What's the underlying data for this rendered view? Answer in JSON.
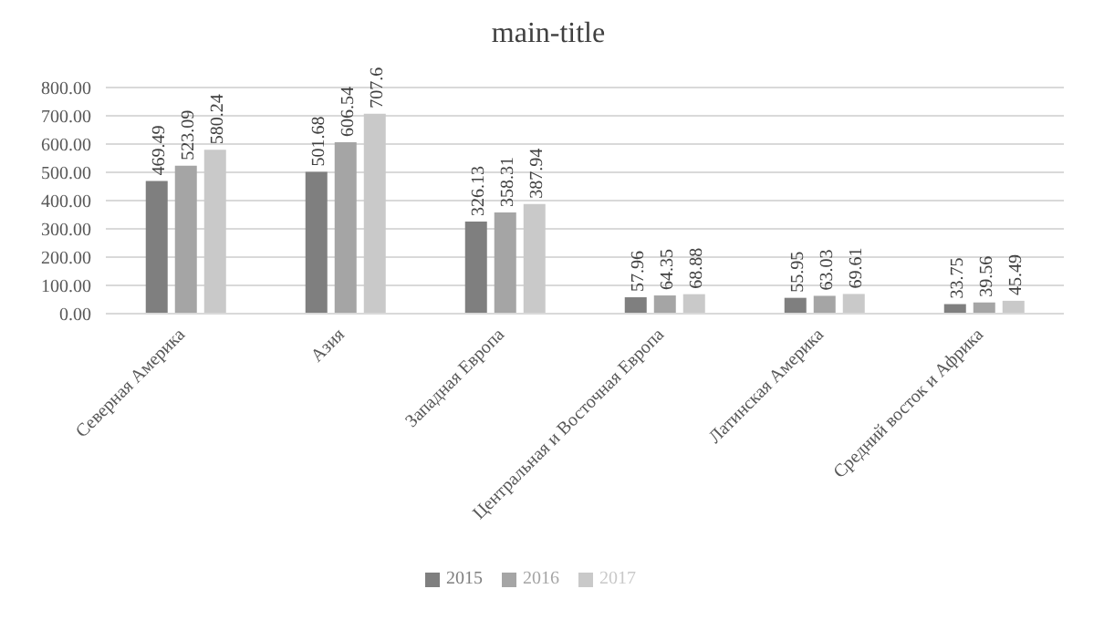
{
  "chart_data": {
    "type": "bar",
    "title": "main-title",
    "categories": [
      "Северная Америка",
      "Азия",
      "Западная Европа",
      "Центральная и Восточная Европа",
      "Латинская Америка",
      "Средний восток и Африка"
    ],
    "series": [
      {
        "name": "2015",
        "color": "#7f7f7f",
        "values": [
          469.49,
          501.68,
          326.13,
          57.96,
          55.95,
          33.75
        ]
      },
      {
        "name": "2016",
        "color": "#a5a5a5",
        "values": [
          523.09,
          606.54,
          358.31,
          64.35,
          63.03,
          39.56
        ]
      },
      {
        "name": "2017",
        "color": "#c9c9c9",
        "values": [
          580.24,
          707.6,
          387.94,
          68.88,
          69.61,
          45.49
        ]
      }
    ],
    "ylim": [
      0,
      800
    ],
    "yticks": [
      {
        "value": 0,
        "label": "0.00"
      },
      {
        "value": 100,
        "label": "100.00"
      },
      {
        "value": 200,
        "label": "200.00"
      },
      {
        "value": 300,
        "label": "300.00"
      },
      {
        "value": 400,
        "label": "400.00"
      },
      {
        "value": 500,
        "label": "500.00"
      },
      {
        "value": 600,
        "label": "600.00"
      },
      {
        "value": 700,
        "label": "700.00"
      },
      {
        "value": 800,
        "label": "800.00"
      }
    ],
    "grid": "y",
    "legend": "bottom",
    "data_labels": true
  }
}
